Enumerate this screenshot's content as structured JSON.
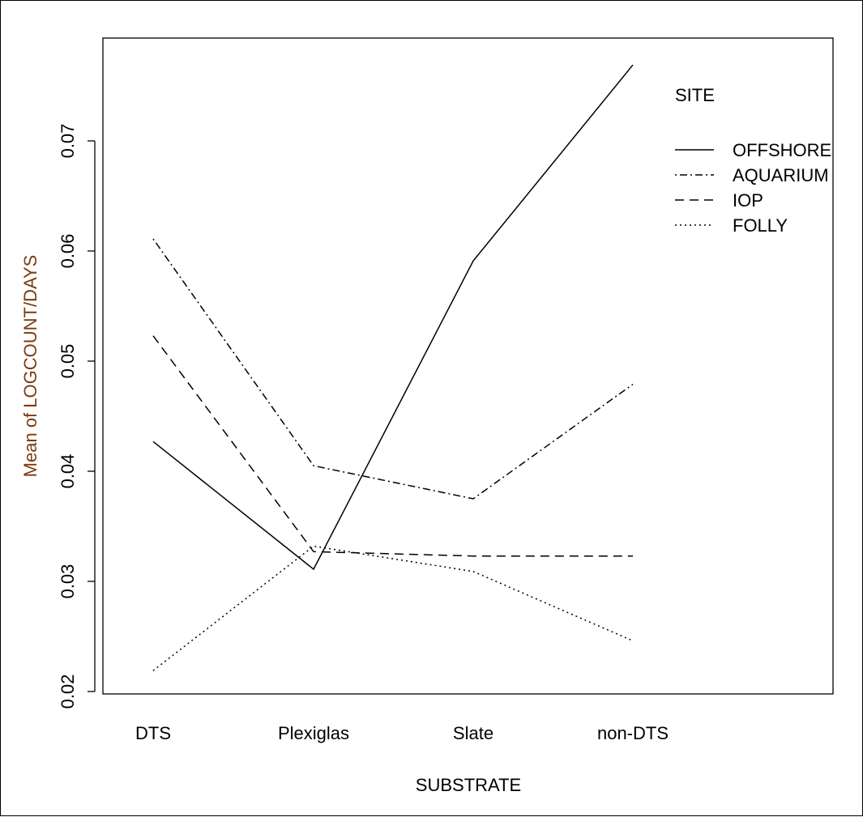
{
  "chart_data": {
    "type": "line",
    "categories": [
      "DTS",
      "Plexiglas",
      "Slate",
      "non-DTS"
    ],
    "xlabel": "SUBSTRATE",
    "ylabel": "Mean of LOGCOUNT/DAYS",
    "ylim": [
      0.02,
      0.077
    ],
    "yticks": [
      "0.02",
      "0.03",
      "0.04",
      "0.05",
      "0.06",
      "0.07"
    ],
    "legend_title": "SITE",
    "legend_position": "top-right",
    "grid": false,
    "series": [
      {
        "name": "OFFSHORE",
        "line_style": "solid",
        "values": [
          0.0427,
          0.0311,
          0.0591,
          0.0769
        ]
      },
      {
        "name": "AQUARIUM",
        "line_style": "dotdash",
        "values": [
          0.0611,
          0.0405,
          0.0375,
          0.0479
        ]
      },
      {
        "name": "IOP",
        "line_style": "dashed",
        "values": [
          0.0523,
          0.0327,
          0.0323,
          0.0323
        ]
      },
      {
        "name": "FOLLY",
        "line_style": "dotted",
        "values": [
          0.0219,
          0.0332,
          0.0309,
          0.0246
        ]
      }
    ],
    "colors": {
      "axis": "#000000",
      "ylabel": "#7a3b10",
      "series": "#000000"
    }
  }
}
